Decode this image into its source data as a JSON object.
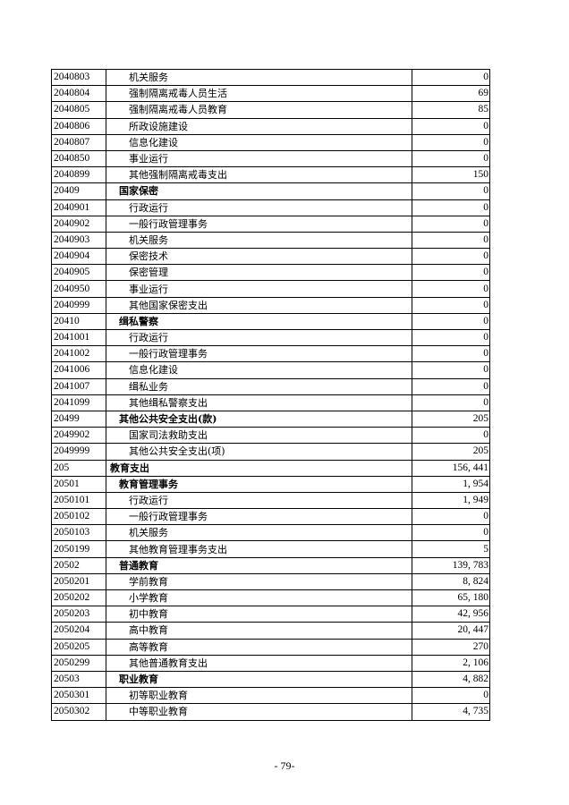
{
  "rows": [
    {
      "code": "2040803",
      "name": "机关服务",
      "value": "0",
      "level": 2
    },
    {
      "code": "2040804",
      "name": "强制隔离戒毒人员生活",
      "value": "69",
      "level": 2
    },
    {
      "code": "2040805",
      "name": "强制隔离戒毒人员教育",
      "value": "85",
      "level": 2
    },
    {
      "code": "2040806",
      "name": "所政设施建设",
      "value": "0",
      "level": 2
    },
    {
      "code": "2040807",
      "name": "信息化建设",
      "value": "0",
      "level": 2
    },
    {
      "code": "2040850",
      "name": "事业运行",
      "value": "0",
      "level": 2
    },
    {
      "code": "2040899",
      "name": "其他强制隔离戒毒支出",
      "value": "150",
      "level": 2
    },
    {
      "code": "20409",
      "name": "国家保密",
      "value": "0",
      "level": 1
    },
    {
      "code": "2040901",
      "name": "行政运行",
      "value": "0",
      "level": 2
    },
    {
      "code": "2040902",
      "name": "一般行政管理事务",
      "value": "0",
      "level": 2
    },
    {
      "code": "2040903",
      "name": "机关服务",
      "value": "0",
      "level": 2
    },
    {
      "code": "2040904",
      "name": "保密技术",
      "value": "0",
      "level": 2
    },
    {
      "code": "2040905",
      "name": "保密管理",
      "value": "0",
      "level": 2
    },
    {
      "code": "2040950",
      "name": "事业运行",
      "value": "0",
      "level": 2
    },
    {
      "code": "2040999",
      "name": "其他国家保密支出",
      "value": "0",
      "level": 2
    },
    {
      "code": "20410",
      "name": "缉私警察",
      "value": "0",
      "level": 1
    },
    {
      "code": "2041001",
      "name": "行政运行",
      "value": "0",
      "level": 2
    },
    {
      "code": "2041002",
      "name": "一般行政管理事务",
      "value": "0",
      "level": 2
    },
    {
      "code": "2041006",
      "name": "信息化建设",
      "value": "0",
      "level": 2
    },
    {
      "code": "2041007",
      "name": "缉私业务",
      "value": "0",
      "level": 2
    },
    {
      "code": "2041099",
      "name": "其他缉私警察支出",
      "value": "0",
      "level": 2
    },
    {
      "code": "20499",
      "name": "其他公共安全支出(款)",
      "value": "205",
      "level": 1
    },
    {
      "code": "2049902",
      "name": "国家司法救助支出",
      "value": "0",
      "level": 2
    },
    {
      "code": "2049999",
      "name": "其他公共安全支出(项)",
      "value": "205",
      "level": 2
    },
    {
      "code": "205",
      "name": "教育支出",
      "value": "156, 441",
      "level": 0
    },
    {
      "code": "20501",
      "name": "教育管理事务",
      "value": "1, 954",
      "level": 1
    },
    {
      "code": "2050101",
      "name": "行政运行",
      "value": "1, 949",
      "level": 2
    },
    {
      "code": "2050102",
      "name": "一般行政管理事务",
      "value": "0",
      "level": 2
    },
    {
      "code": "2050103",
      "name": "机关服务",
      "value": "0",
      "level": 2
    },
    {
      "code": "2050199",
      "name": "其他教育管理事务支出",
      "value": "5",
      "level": 2
    },
    {
      "code": "20502",
      "name": "普通教育",
      "value": "139, 783",
      "level": 1
    },
    {
      "code": "2050201",
      "name": "学前教育",
      "value": "8, 824",
      "level": 2
    },
    {
      "code": "2050202",
      "name": "小学教育",
      "value": "65, 180",
      "level": 2
    },
    {
      "code": "2050203",
      "name": "初中教育",
      "value": "42, 956",
      "level": 2
    },
    {
      "code": "2050204",
      "name": "高中教育",
      "value": "20, 447",
      "level": 2
    },
    {
      "code": "2050205",
      "name": "高等教育",
      "value": "270",
      "level": 2
    },
    {
      "code": "2050299",
      "name": "其他普通教育支出",
      "value": "2, 106",
      "level": 2
    },
    {
      "code": "20503",
      "name": "职业教育",
      "value": "4, 882",
      "level": 1
    },
    {
      "code": "2050301",
      "name": "初等职业教育",
      "value": "0",
      "level": 2
    },
    {
      "code": "2050302",
      "name": "中等职业教育",
      "value": "4, 735",
      "level": 2
    }
  ],
  "page_number": "- 79-"
}
